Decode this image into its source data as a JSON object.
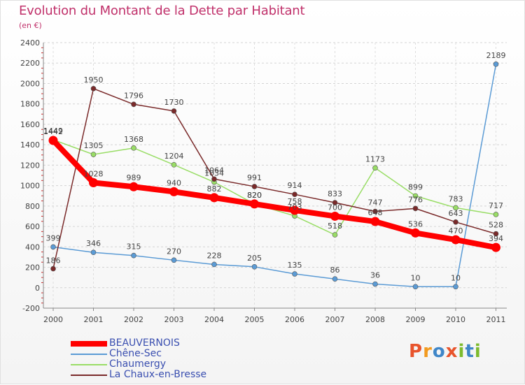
{
  "title": "Evolution du Montant de la Dette par Habitant",
  "subtitle": "(en €)",
  "brand": {
    "letters": [
      "P",
      "r",
      "o",
      "x",
      "i",
      "t",
      "i"
    ],
    "colors": [
      "#e8542c",
      "#f29a1f",
      "#3f86c8",
      "#e8542c",
      "#7dbb2e",
      "#3f86c8",
      "#7dbb2e"
    ]
  },
  "chart_data": {
    "type": "line",
    "title": "Evolution du Montant de la Dette par Habitant",
    "subtitle": "(en €)",
    "x": [
      "2000",
      "2001",
      "2002",
      "2003",
      "2004",
      "2005",
      "2006",
      "2007",
      "2008",
      "2009",
      "2010",
      "2011"
    ],
    "ylim": [
      -200,
      2400
    ],
    "yticks": [
      "-200",
      "0",
      "200",
      "400",
      "600",
      "800",
      "1000",
      "1200",
      "1400",
      "1600",
      "1800",
      "2000",
      "2200",
      "2400"
    ],
    "grid": "horizontal dashed",
    "legend": "bottom-left",
    "series": [
      {
        "name": "BEAUVERNOIS",
        "color": "#ff0000",
        "emphasis": true,
        "values": [
          1442,
          1028,
          989,
          940,
          882,
          820,
          758,
          700,
          648,
          536,
          470,
          394
        ],
        "labels": [
          "1442",
          "1028",
          "989",
          "940",
          "882",
          "820",
          "758",
          "700",
          "648",
          "536",
          "470",
          "394"
        ]
      },
      {
        "name": "Chêne-Sec",
        "color": "#5b9bd5",
        "emphasis": false,
        "values": [
          399,
          346,
          315,
          270,
          228,
          205,
          135,
          86,
          36,
          10,
          10,
          2189
        ],
        "labels": [
          "399",
          "346",
          "315",
          "270",
          "228",
          "205",
          "135",
          "86",
          "36",
          "10",
          "10",
          "2189"
        ]
      },
      {
        "name": "Chaumergy",
        "color": "#99dd66",
        "emphasis": false,
        "values": [
          1449,
          1305,
          1368,
          1204,
          1034,
          820,
          703,
          518,
          1173,
          899,
          783,
          717
        ],
        "labels": [
          "1449",
          "1305",
          "1368",
          "1204",
          "1034",
          "820",
          "703",
          "518",
          "1173",
          "899",
          "783",
          "717"
        ]
      },
      {
        "name": "La Chaux-en-Bresse",
        "color": "#7a2a2a",
        "emphasis": false,
        "values": [
          186,
          1950,
          1796,
          1730,
          1064,
          991,
          914,
          833,
          747,
          776,
          643,
          528
        ],
        "labels": [
          "186",
          "1950",
          "1796",
          "1730",
          "1064",
          "991",
          "914",
          "833",
          "747",
          "776",
          "643",
          "528"
        ]
      }
    ]
  }
}
